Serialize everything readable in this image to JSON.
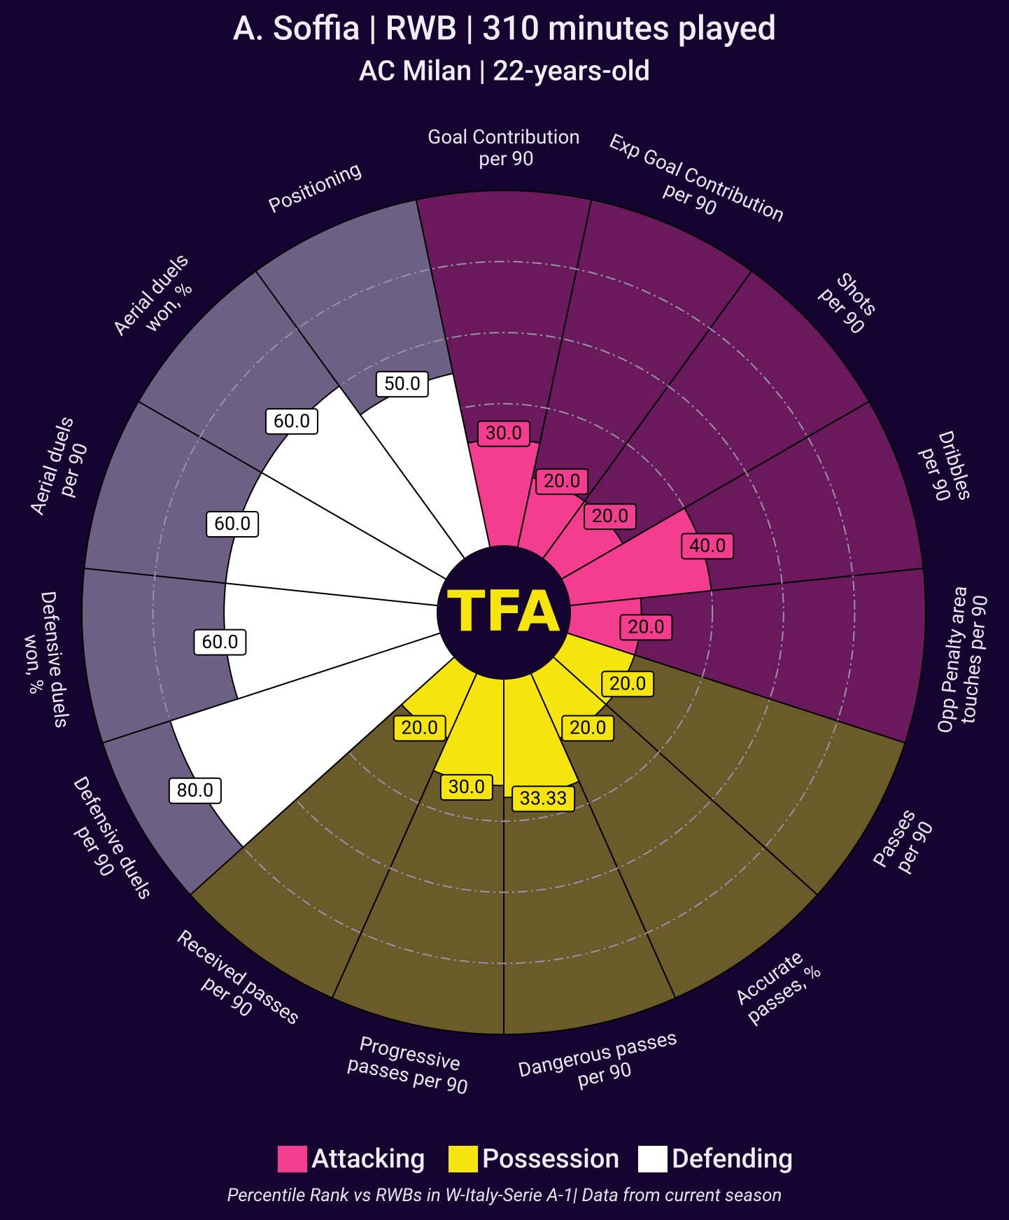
{
  "chart_data": {
    "type": "pizza",
    "title": "A. Soffia | RWB | 310 minutes played",
    "subtitle": "AC Milan | 22-years-old",
    "footnote": "Percentile Rank vs RWBs in W-Italy-Serie A-1| Data from current season",
    "logo": "TFA",
    "rlim": [
      0,
      100
    ],
    "rticks": [
      20,
      40,
      60,
      80
    ],
    "series": [
      {
        "name": "Attacking",
        "color": "#f53d8f",
        "background": "#6a1a5c",
        "categories": [
          "Goal Contribution\nper 90",
          "Exp Goal Contribution\nper 90",
          "Shots\nper 90",
          "Dribbles\nper 90",
          "Opp Penalty area\ntouches per 90"
        ],
        "values": [
          30,
          20,
          20,
          40,
          20
        ],
        "value_labels": [
          "30.0",
          "20.0",
          "20.0",
          "40.0",
          "20.0"
        ]
      },
      {
        "name": "Possession",
        "color": "#f5e50c",
        "background": "#6b5a2a",
        "categories": [
          "Passes\nper 90",
          "Accurate\npasses, %",
          "Dangerous passes\nper 90",
          "Progressive\npasses per 90",
          "Received passes\nper 90"
        ],
        "values": [
          20,
          20,
          33.33,
          30,
          20
        ],
        "value_labels": [
          "20.0",
          "20.0",
          "33.33",
          "30.0",
          "20.0"
        ]
      },
      {
        "name": "Defending",
        "color": "#ffffff",
        "background": "#6e6085",
        "categories": [
          "Defensive duels\nper 90",
          "Defensive duels\nwon, %",
          "Aerial duels\nper 90",
          "Aerial duels\nwon, %",
          "Positioning"
        ],
        "values": [
          80,
          60,
          60,
          60,
          50
        ],
        "value_labels": [
          "80.0",
          "60.0",
          "60.0",
          "60.0",
          "50.0"
        ]
      }
    ]
  }
}
